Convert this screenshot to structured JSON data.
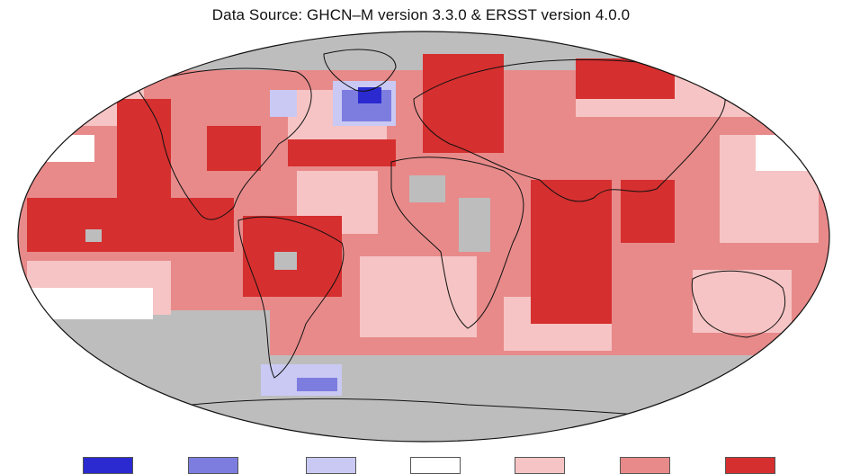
{
  "header": {
    "title": "Data Source: GHCN–M version 3.3.0 & ERSST version 4.0.0"
  },
  "map": {
    "projection": "Robinson",
    "colors": {
      "no_data": "#bdbdbd",
      "record_warm": "#d62f2f",
      "much_warmer": "#e88a8a",
      "warmer": "#f6c4c4",
      "near_average": "#ffffff",
      "cooler": "#c9c9f4",
      "much_cooler": "#7d7de0",
      "record_cold": "#2a2ad0"
    }
  },
  "legend": {
    "swatches": [
      {
        "color": "#2a2ad0"
      },
      {
        "color": "#7d7de0"
      },
      {
        "color": "#c9c9f4"
      },
      {
        "color": "#ffffff"
      },
      {
        "color": "#f6c4c4"
      },
      {
        "color": "#e88a8a"
      },
      {
        "color": "#d62f2f"
      }
    ]
  }
}
